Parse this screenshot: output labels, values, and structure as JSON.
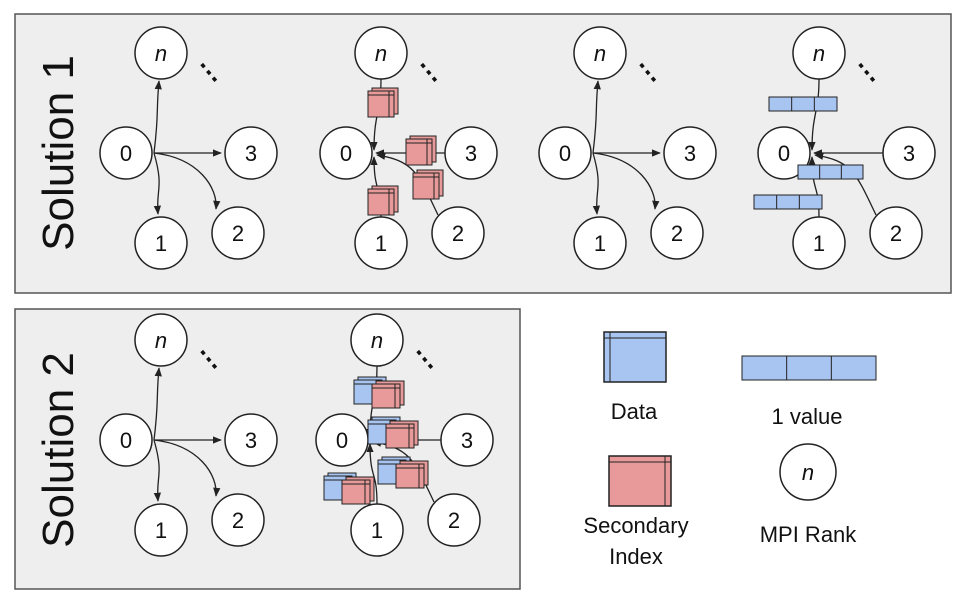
{
  "solution1": {
    "label": "Solution 1",
    "ranks": [
      "n",
      "0",
      "1",
      "2",
      "3"
    ],
    "ellipsis": "⋮"
  },
  "solution2": {
    "label": "Solution 2",
    "ranks": [
      "n",
      "0",
      "1",
      "2",
      "3"
    ],
    "ellipsis": "⋮"
  },
  "legend": {
    "data_label": "Data",
    "value_label": "1 value",
    "secondary_index_line1": "Secondary",
    "secondary_index_line2": "Index",
    "rank_symbol": "n",
    "rank_label": "MPI Rank"
  },
  "colors": {
    "panel_fill": "#eeeeee",
    "panel_stroke": "#555555",
    "data_fill": "#a8c4f0",
    "secondary_index_fill": "#e8999a",
    "node_fill": "#ffffff",
    "stroke": "#222222"
  }
}
